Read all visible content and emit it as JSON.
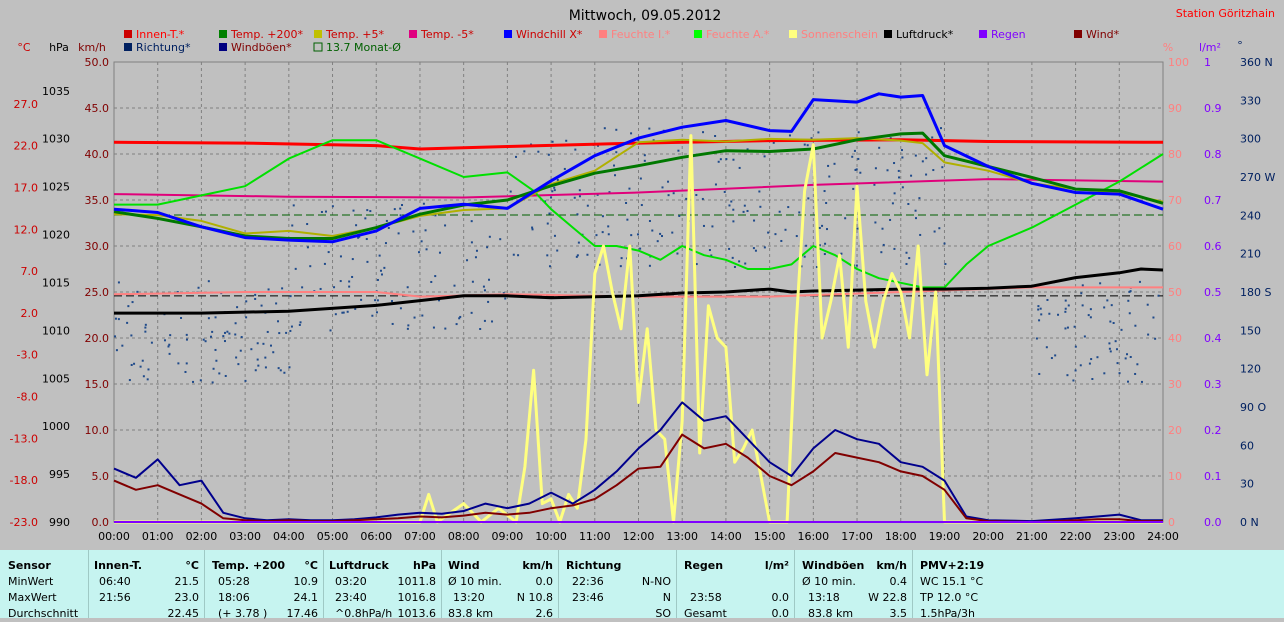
{
  "title": "Mittwoch, 09.05.2012",
  "station": "Station Göritzhain",
  "unit_labels": {
    "celsius": "°C",
    "hpa": "hPa",
    "kmh": "km/h",
    "percent": "%",
    "rain": "l/m²",
    "deg": "°"
  },
  "legend": [
    {
      "label": "Innen-T.*",
      "color": "#ff0000",
      "box": "#cc0000"
    },
    {
      "label": "Temp. +200*",
      "color": "#cc0000",
      "box": "#008000"
    },
    {
      "label": "Temp. +5*",
      "color": "#cc0000",
      "box": "#c0c000"
    },
    {
      "label": "Temp. -5*",
      "color": "#cc0000",
      "box": "#e00080"
    },
    {
      "label": "Windchill X*",
      "color": "#cc0000",
      "box": "#0000ff"
    },
    {
      "label": "Feuchte I.*",
      "color": "#ff8080",
      "box": "#ff8080"
    },
    {
      "label": "Feuchte A.*",
      "color": "#ff8080",
      "box": "#00ff00"
    },
    {
      "label": "Sonnenschein",
      "color": "#ff8080",
      "box": "#ffff80"
    },
    {
      "label": "Luftdruck*",
      "color": "#000000",
      "box": "#000000"
    },
    {
      "label": "Regen",
      "color": "#8000ff",
      "box": "#8000ff"
    },
    {
      "label": "Wind*",
      "color": "#800000",
      "box": "#800000"
    },
    {
      "label": "Richtung*",
      "color": "#002060",
      "box": "#002060"
    },
    {
      "label": "Windböen*",
      "color": "#800000",
      "box": "#000080"
    },
    {
      "label": "13.7 Monat-Ø",
      "color": "#006000",
      "box": "#c0c0c0"
    }
  ],
  "chart_data": {
    "type": "line",
    "x_ticks": [
      "00:00",
      "01:00",
      "02:00",
      "03:00",
      "04:00",
      "05:00",
      "06:00",
      "07:00",
      "08:00",
      "09:00",
      "10:00",
      "11:00",
      "12:00",
      "13:00",
      "14:00",
      "15:00",
      "16:00",
      "17:00",
      "18:00",
      "19:00",
      "20:00",
      "21:00",
      "22:00",
      "23:00",
      "24:00"
    ],
    "xlim": [
      0,
      24
    ],
    "axes": {
      "celsius": {
        "ticks": [
          "27.0",
          "22.0",
          "17.0",
          "12.0",
          "7.0",
          "2.0",
          "-3.0",
          "-8.0",
          "-13.0",
          "-18.0",
          "-23.0"
        ],
        "ylim": [
          -23,
          32
        ]
      },
      "hpa": {
        "ticks": [
          "1035",
          "1030",
          "1025",
          "1020",
          "1015",
          "1010",
          "1005",
          "1000",
          "995",
          "990"
        ],
        "ylim": [
          990,
          1038
        ]
      },
      "kmh": {
        "ticks": [
          "50.0",
          "45.0",
          "40.0",
          "35.0",
          "30.0",
          "25.0",
          "20.0",
          "15.0",
          "10.0",
          "5.0",
          "0.0"
        ],
        "ylim": [
          0,
          50
        ]
      },
      "percent": {
        "ticks": [
          "100",
          "90",
          "80",
          "70",
          "60",
          "50",
          "40",
          "30",
          "20",
          "10",
          "0"
        ],
        "ylim": [
          0,
          100
        ]
      },
      "rain": {
        "ticks": [
          "1",
          "0.9",
          "0.8",
          "0.7",
          "0.6",
          "0.5",
          "0.4",
          "0.3",
          "0.2",
          "0.1",
          "0.0"
        ],
        "ylim": [
          0,
          1
        ]
      },
      "deg": {
        "ticks": [
          "360 N",
          "330",
          "300",
          "270 W",
          "240",
          "210",
          "180 S",
          "150",
          "120",
          "90 O",
          "60",
          "30",
          "0 N"
        ],
        "ylim": [
          0,
          360
        ]
      }
    },
    "reference_lines": [
      {
        "name": "13.7 Monat-Ø",
        "axis": "celsius",
        "value": 13.7,
        "color": "#006000"
      },
      {
        "axis": "hpa",
        "value": 1013.6,
        "color": "#000000"
      }
    ],
    "series": [
      {
        "name": "Innen-T.*",
        "axis": "celsius",
        "color": "#ff0000",
        "width": 3,
        "x": [
          0,
          3,
          6,
          7,
          9,
          12,
          15,
          18,
          20,
          24
        ],
        "y": [
          22.4,
          22.3,
          22.0,
          21.6,
          21.9,
          22.3,
          22.6,
          22.7,
          22.5,
          22.4
        ]
      },
      {
        "name": "Temp. -5*",
        "axis": "celsius",
        "color": "#e0007a",
        "width": 2,
        "x": [
          0,
          4,
          8,
          12,
          16,
          20,
          24
        ],
        "y": [
          16.2,
          15.9,
          15.8,
          16.4,
          17.3,
          18.0,
          17.7
        ]
      },
      {
        "name": "Feuchte A.*",
        "axis": "percent",
        "color": "#00e000",
        "width": 2,
        "x": [
          0,
          1,
          2,
          3,
          4,
          5,
          6,
          7,
          8,
          9,
          9.6,
          10,
          10.5,
          11,
          11.5,
          12,
          12.5,
          13,
          13.5,
          14,
          14.5,
          15,
          15.5,
          16,
          16.5,
          17,
          17.5,
          18,
          18.5,
          19,
          19.5,
          20,
          21,
          22,
          23,
          24
        ],
        "y": [
          69,
          69,
          71,
          73,
          79,
          83,
          83,
          79,
          75,
          76,
          72,
          68,
          64,
          60,
          60,
          59,
          57,
          60,
          58,
          57,
          55,
          55,
          56,
          60,
          58,
          55,
          53,
          52,
          51,
          51,
          56,
          60,
          64,
          69,
          74,
          80
        ]
      },
      {
        "name": "Temp. +5*",
        "axis": "celsius",
        "color": "#b0b000",
        "width": 2,
        "x": [
          0,
          1,
          2,
          3,
          4,
          5,
          6,
          7,
          8,
          9,
          10,
          11,
          12,
          13,
          14,
          15,
          16,
          17,
          18,
          18.5,
          19,
          20,
          21,
          22,
          23,
          24
        ],
        "y": [
          13.8,
          13.7,
          13.0,
          11.5,
          11.8,
          11.2,
          12.2,
          13.6,
          14.3,
          14.5,
          17.4,
          19.0,
          22.4,
          22.7,
          22.5,
          22.8,
          22.7,
          22.9,
          22.6,
          22.3,
          20.0,
          19.0,
          17.5,
          16.8,
          16.4,
          15.3
        ]
      },
      {
        "name": "Temp. +200*",
        "axis": "celsius",
        "color": "#007800",
        "width": 3,
        "x": [
          0,
          1,
          2,
          3,
          4,
          5,
          6,
          7,
          8,
          9,
          10,
          11,
          12,
          13,
          14,
          15,
          16,
          17,
          18,
          18.5,
          19,
          20,
          21,
          22,
          23,
          24
        ],
        "y": [
          14.1,
          13.3,
          12.3,
          11.2,
          10.9,
          10.9,
          12.2,
          13.8,
          14.9,
          15.5,
          17.2,
          18.7,
          19.6,
          20.6,
          21.4,
          21.3,
          21.6,
          22.7,
          23.4,
          23.5,
          20.8,
          19.5,
          18.2,
          16.8,
          16.6,
          15.1
        ]
      },
      {
        "name": "Windchill X*",
        "axis": "celsius",
        "color": "#0000ff",
        "width": 3,
        "x": [
          0,
          1,
          2,
          3,
          4,
          5,
          6,
          7,
          8,
          9,
          10,
          11,
          12,
          13,
          14,
          15,
          15.5,
          16,
          17,
          17.5,
          18,
          18.5,
          19,
          20,
          21,
          22,
          23,
          24
        ],
        "y": [
          14.4,
          14.0,
          12.3,
          11.0,
          10.7,
          10.5,
          11.8,
          14.5,
          15.0,
          14.5,
          17.8,
          20.8,
          22.9,
          24.2,
          25.0,
          23.8,
          23.7,
          27.5,
          27.2,
          28.2,
          27.8,
          28.0,
          22.0,
          19.5,
          17.5,
          16.4,
          16.2,
          14.4
        ]
      },
      {
        "name": "Feuchte I.*",
        "axis": "percent",
        "color": "#ff8080",
        "width": 2,
        "x": [
          0,
          3,
          6,
          7,
          9,
          12,
          15,
          18,
          21,
          24
        ],
        "y": [
          49.5,
          50,
          50,
          49,
          49.5,
          49,
          49,
          50,
          51,
          51
        ]
      },
      {
        "name": "Luftdruck*",
        "axis": "hpa",
        "color": "#000000",
        "width": 3,
        "x": [
          0,
          2,
          4,
          6,
          7,
          8,
          9,
          10,
          11,
          12,
          13,
          14,
          15,
          15.5,
          16,
          17,
          18,
          19,
          20,
          21,
          22,
          23,
          23.5,
          24
        ],
        "y": [
          1011.8,
          1011.8,
          1012.0,
          1012.6,
          1013.1,
          1013.6,
          1013.6,
          1013.4,
          1013.5,
          1013.6,
          1013.9,
          1014.0,
          1014.3,
          1014.0,
          1014.1,
          1014.2,
          1014.3,
          1014.3,
          1014.4,
          1014.6,
          1015.5,
          1016.0,
          1016.4,
          1016.3
        ]
      },
      {
        "name": "Sonnenschein",
        "axis": "percent",
        "color": "#ffff80",
        "width": 3,
        "x": [
          0,
          7,
          7.2,
          7.4,
          8,
          8.4,
          8.8,
          9.2,
          9.4,
          9.6,
          9.8,
          10,
          10.2,
          10.4,
          10.6,
          10.8,
          11,
          11.2,
          11.4,
          11.6,
          11.8,
          12,
          12.2,
          12.4,
          12.6,
          12.8,
          13,
          13.2,
          13.4,
          13.6,
          13.8,
          14,
          14.2,
          14.4,
          14.6,
          14.8,
          15,
          15.2,
          15.4,
          15.6,
          15.8,
          16,
          16.2,
          16.4,
          16.6,
          16.8,
          17,
          17.2,
          17.4,
          17.6,
          17.8,
          18,
          18.2,
          18.4,
          18.6,
          18.8,
          19,
          19.2,
          24
        ],
        "y": [
          0,
          0,
          6,
          0,
          4,
          0,
          3,
          0,
          12,
          33,
          4,
          5,
          0,
          6,
          3,
          18,
          54,
          60,
          50,
          42,
          60,
          26,
          42,
          20,
          18,
          0,
          22,
          84,
          15,
          47,
          40,
          38,
          13,
          16,
          20,
          10,
          0,
          0,
          0,
          42,
          72,
          82,
          40,
          48,
          58,
          38,
          73,
          48,
          38,
          48,
          54,
          50,
          40,
          60,
          32,
          50,
          0,
          0,
          0
        ]
      },
      {
        "name": "Windböen*",
        "axis": "kmh",
        "color": "#00008c",
        "width": 2,
        "x": [
          0,
          0.5,
          1,
          1.5,
          2,
          2.5,
          3,
          3.5,
          4,
          4.5,
          5,
          5.5,
          6,
          6.5,
          7,
          7.5,
          8,
          8.5,
          9,
          9.5,
          10,
          10.5,
          11,
          11.5,
          12,
          12.5,
          13,
          13.5,
          14,
          14.5,
          15,
          15.5,
          16,
          16.5,
          17,
          17.5,
          18,
          18.5,
          19,
          19.5,
          20,
          21,
          22,
          22.5,
          23,
          23.5,
          24
        ],
        "y": [
          5.8,
          4.8,
          6.8,
          4.0,
          4.5,
          1.0,
          0.4,
          0.2,
          0.3,
          0.2,
          0.2,
          0.3,
          0.5,
          0.8,
          1.0,
          0.9,
          1.2,
          2.0,
          1.5,
          2.0,
          3.2,
          2.0,
          3.5,
          5.5,
          8.0,
          10.0,
          13.0,
          11.0,
          11.5,
          9.0,
          6.5,
          5.0,
          8.0,
          10.0,
          9.0,
          8.5,
          6.5,
          6.0,
          4.5,
          0.6,
          0.2,
          0.1,
          0.4,
          0.6,
          0.8,
          0.2,
          0.2
        ]
      },
      {
        "name": "Wind*",
        "axis": "kmh",
        "color": "#800000",
        "width": 2,
        "x": [
          0,
          0.5,
          1,
          1.5,
          2,
          2.5,
          3,
          3.5,
          4,
          4.5,
          5,
          5.5,
          6,
          6.5,
          7,
          7.5,
          8,
          8.5,
          9,
          9.5,
          10,
          10.5,
          11,
          11.5,
          12,
          12.5,
          13,
          13.5,
          14,
          14.5,
          15,
          15.5,
          16,
          16.5,
          17,
          17.5,
          18,
          18.5,
          19,
          19.5,
          20,
          21,
          22,
          22.5,
          23,
          23.5,
          24
        ],
        "y": [
          4.5,
          3.5,
          4.0,
          3.0,
          2.0,
          0.4,
          0.2,
          0.1,
          0.2,
          0.1,
          0.1,
          0.2,
          0.3,
          0.4,
          0.6,
          0.5,
          0.7,
          1.0,
          0.8,
          1.0,
          1.5,
          1.8,
          2.5,
          4.0,
          5.8,
          6.0,
          9.5,
          8.0,
          8.5,
          7.0,
          5.0,
          4.0,
          5.5,
          7.5,
          7.0,
          6.5,
          5.5,
          5.0,
          3.5,
          0.4,
          0.1,
          0.0,
          0.2,
          0.3,
          0.3,
          0.1,
          0.1
        ]
      },
      {
        "name": "Regen",
        "axis": "rain",
        "color": "#8000ff",
        "width": 2,
        "x": [
          0,
          24
        ],
        "y": [
          0.0,
          0.0
        ]
      }
    ]
  },
  "table": {
    "headers": {
      "sensor": "Sensor",
      "innen": "Innen-T.",
      "innen_unit": "°C",
      "temp": "Temp. +200",
      "temp_unit": "°C",
      "druck": "Luftdruck",
      "druck_unit": "hPa",
      "wind": "Wind",
      "wind_unit": "km/h",
      "richtung": "Richtung",
      "regen": "Regen",
      "regen_unit": "l/m²",
      "boeen": "Windböen",
      "boeen_unit": "km/h",
      "pmv": "PMV+2:19"
    },
    "rows": [
      {
        "label": "MinWert",
        "innen_t": "06:40",
        "innen_v": "21.5",
        "temp_t": "05:28",
        "temp_v": "10.9",
        "druck_t": "03:20",
        "druck_v": "1011.8",
        "wind_t": "Ø 10 min.",
        "wind_v": "0.0",
        "richt_t": "22:36",
        "richt_v": "N-NO",
        "regen_t": "",
        "regen_v": "",
        "boe_t": "Ø 10 min.",
        "boe_v": "0.4",
        "pmv": "WC 15.1 °C"
      },
      {
        "label": "MaxWert",
        "innen_t": "21:56",
        "innen_v": "23.0",
        "temp_t": "18:06",
        "temp_v": "24.1",
        "druck_t": "23:40",
        "druck_v": "1016.8",
        "wind_t": "13:20",
        "wind_v": "N 10.8",
        "richt_t": "23:46",
        "richt_v": "N",
        "regen_t": "23:58",
        "regen_v": "0.0",
        "boe_t": "13:18",
        "boe_v": "W 22.8",
        "pmv": "TP 12.0 °C"
      },
      {
        "label": "Durchschnitt",
        "innen_t": "",
        "innen_v": "22.45",
        "temp_t": "(+ 3.78 )",
        "temp_v": "17.46",
        "druck_t": "^0.8hPa/h",
        "druck_v": "1013.6",
        "wind_t": "83.8 km",
        "wind_v": "2.6",
        "richt_t": "",
        "richt_v": "SO",
        "regen_t": "Gesamt",
        "regen_v": "0.0",
        "boe_t": "83.8 km",
        "boe_v": "3.5",
        "pmv": "1.5hPa/3h"
      }
    ]
  }
}
